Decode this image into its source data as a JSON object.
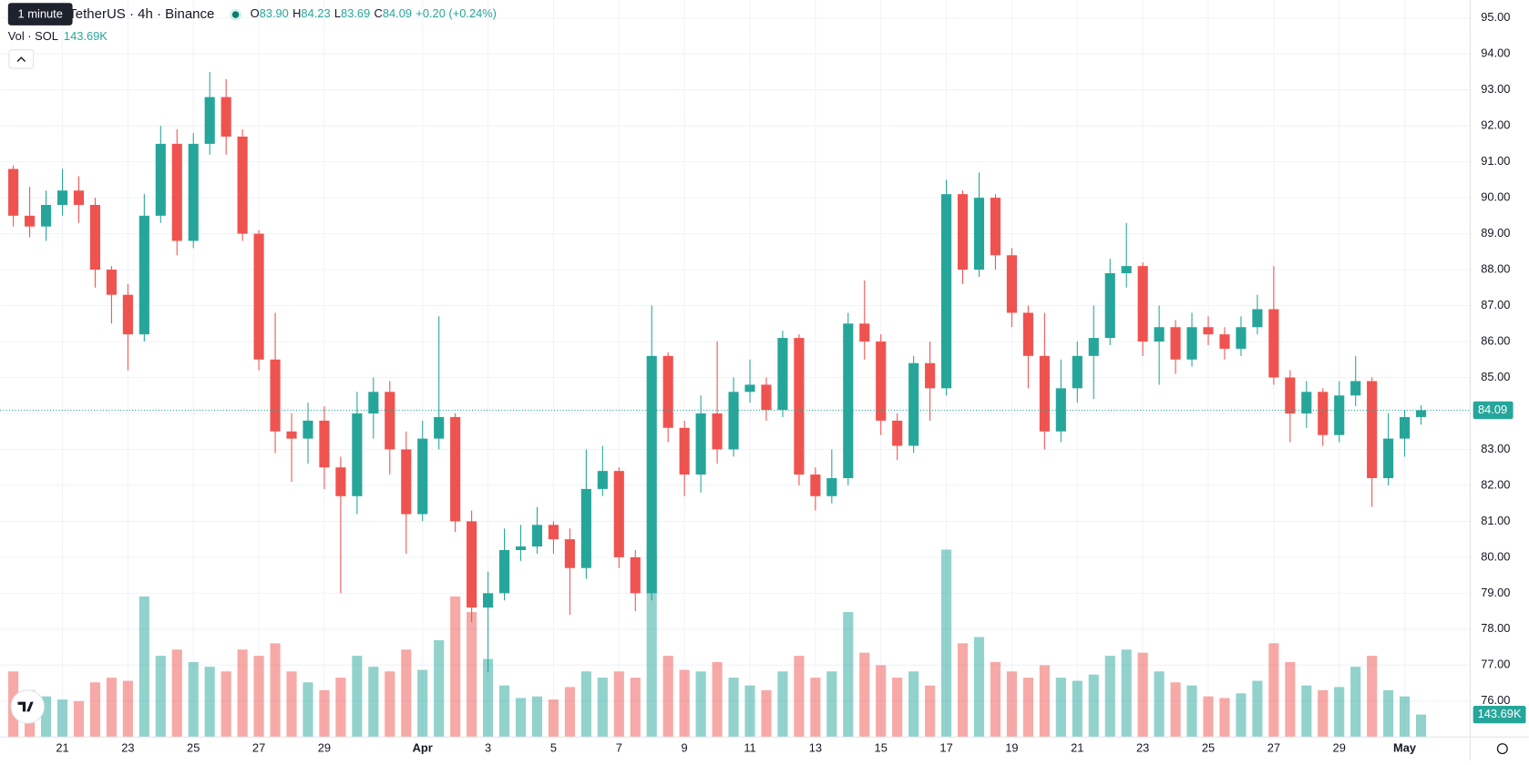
{
  "chart_data": {
    "type": "candlestick",
    "symbol": "TetherUS · 4h · Binance",
    "tooltip": "1 minute",
    "legend": [
      {
        "key": "O",
        "value": "83.90"
      },
      {
        "key": "H",
        "value": "84.23"
      },
      {
        "key": "L",
        "value": "83.69"
      },
      {
        "key": "C",
        "value": "84.09"
      }
    ],
    "change": "+0.20 (+0.24%)",
    "volume_title": "Vol · SOL",
    "volume_label": "143.69K",
    "last_price_label": "84.09",
    "up_color": "#26a69a",
    "down_color": "#ef5350",
    "grid": true,
    "xlim": [
      -1.9,
      43
    ],
    "ylim": [
      75,
      95.5
    ],
    "volume_lim": [
      0,
      1500
    ],
    "xticks": [
      {
        "value": 0,
        "label": "21"
      },
      {
        "value": 2,
        "label": "23"
      },
      {
        "value": 4,
        "label": "25"
      },
      {
        "value": 6,
        "label": "27"
      },
      {
        "value": 8,
        "label": "29"
      },
      {
        "value": 11,
        "label": "Apr"
      },
      {
        "value": 13,
        "label": "3"
      },
      {
        "value": 15,
        "label": "5"
      },
      {
        "value": 17,
        "label": "7"
      },
      {
        "value": 19,
        "label": "9"
      },
      {
        "value": 21,
        "label": "11"
      },
      {
        "value": 23,
        "label": "13"
      },
      {
        "value": 25,
        "label": "15"
      },
      {
        "value": 27,
        "label": "17"
      },
      {
        "value": 29,
        "label": "19"
      },
      {
        "value": 31,
        "label": "21"
      },
      {
        "value": 33,
        "label": "23"
      },
      {
        "value": 35,
        "label": "25"
      },
      {
        "value": 37,
        "label": "27"
      },
      {
        "value": 39,
        "label": "29"
      },
      {
        "value": 41,
        "label": "May"
      }
    ],
    "yticks": [
      {
        "value": 76,
        "label": "76.00"
      },
      {
        "value": 77,
        "label": "77.00"
      },
      {
        "value": 78,
        "label": "78.00"
      },
      {
        "value": 79,
        "label": "79.00"
      },
      {
        "value": 80,
        "label": "80.00"
      },
      {
        "value": 81,
        "label": "81.00"
      },
      {
        "value": 82,
        "label": "82.00"
      },
      {
        "value": 83,
        "label": "83.00"
      },
      {
        "value": 84,
        "label": "84.00"
      },
      {
        "value": 85,
        "label": "85.00"
      },
      {
        "value": 86,
        "label": "86.00"
      },
      {
        "value": 87,
        "label": "87.00"
      },
      {
        "value": 88,
        "label": "88.00"
      },
      {
        "value": 89,
        "label": "89.00"
      },
      {
        "value": 90,
        "label": "90.00"
      },
      {
        "value": 91,
        "label": "91.00"
      },
      {
        "value": 92,
        "label": "92.00"
      },
      {
        "value": 93,
        "label": "93.00"
      },
      {
        "value": 94,
        "label": "94.00"
      },
      {
        "value": 95,
        "label": "95.00"
      }
    ],
    "x": [
      -1.5,
      -1,
      -0.5,
      0,
      0.5,
      1,
      1.5,
      2,
      2.5,
      3,
      3.5,
      4,
      4.5,
      5,
      5.5,
      6,
      6.5,
      7,
      7.5,
      8,
      8.5,
      9,
      9.5,
      10,
      10.5,
      11,
      11.5,
      12,
      12.5,
      13,
      13.5,
      14,
      14.5,
      15,
      15.5,
      16,
      16.5,
      17,
      17.5,
      18,
      18.5,
      19,
      19.5,
      20,
      20.5,
      21,
      21.5,
      22,
      22.5,
      23,
      23.5,
      24,
      24.5,
      25,
      25.5,
      26,
      26.5,
      27,
      27.5,
      28,
      28.5,
      29,
      29.5,
      30,
      30.5,
      31,
      31.5,
      32,
      32.5,
      33,
      33.5,
      34,
      34.5,
      35,
      35.5,
      36,
      36.5,
      37,
      37.5,
      38,
      38.5,
      39,
      39.5,
      40,
      40.5,
      41,
      41.5
    ],
    "open": [
      90.8,
      89.5,
      89.2,
      89.8,
      90.2,
      89.8,
      88.0,
      87.3,
      86.2,
      89.5,
      91.5,
      88.8,
      91.5,
      92.8,
      91.7,
      89.0,
      85.5,
      83.5,
      83.3,
      83.8,
      82.5,
      81.7,
      84.0,
      84.6,
      83.0,
      81.2,
      83.3,
      83.9,
      81.0,
      78.6,
      79.0,
      80.2,
      80.3,
      80.9,
      80.5,
      79.7,
      81.9,
      82.4,
      80.0,
      79.0,
      85.6,
      83.6,
      82.3,
      84.0,
      83.0,
      84.6,
      84.8,
      84.1,
      86.1,
      82.3,
      81.7,
      82.2,
      86.5,
      86.0,
      83.8,
      83.1,
      85.4,
      84.7,
      90.1,
      88.0,
      90.0,
      88.4,
      86.8,
      85.6,
      83.5,
      84.7,
      85.6,
      86.1,
      87.9,
      88.1,
      86.0,
      86.4,
      85.5,
      86.4,
      86.2,
      85.8,
      86.4,
      86.9,
      85.0,
      84.0,
      84.6,
      83.4,
      84.5,
      84.9,
      82.2,
      83.3,
      83.9
    ],
    "high": [
      90.9,
      90.3,
      90.2,
      90.8,
      90.6,
      90.0,
      88.1,
      87.6,
      90.1,
      92.0,
      91.9,
      91.8,
      93.5,
      93.3,
      91.9,
      89.1,
      86.8,
      84.0,
      84.3,
      84.2,
      82.8,
      84.6,
      85.0,
      84.9,
      83.5,
      83.8,
      86.7,
      84.0,
      81.3,
      79.6,
      80.8,
      80.9,
      81.4,
      81.0,
      80.8,
      83.0,
      83.1,
      82.5,
      80.2,
      87.0,
      85.7,
      83.8,
      84.5,
      86.0,
      85.0,
      85.5,
      85.0,
      86.3,
      86.2,
      82.5,
      83.0,
      86.8,
      87.7,
      86.2,
      84.0,
      85.6,
      86.0,
      90.5,
      90.2,
      90.7,
      90.1,
      88.6,
      87.0,
      86.8,
      85.5,
      86.0,
      87.0,
      88.3,
      89.3,
      88.2,
      87.0,
      86.6,
      86.8,
      86.7,
      86.4,
      86.7,
      87.3,
      88.1,
      85.2,
      84.9,
      84.7,
      84.9,
      85.6,
      85.0,
      84.0,
      84.1,
      84.23
    ],
    "low": [
      89.2,
      88.9,
      88.8,
      89.5,
      89.3,
      87.5,
      86.5,
      85.2,
      86.0,
      89.3,
      88.4,
      88.6,
      91.2,
      91.2,
      88.8,
      85.2,
      82.9,
      82.1,
      82.6,
      81.9,
      79.0,
      81.2,
      83.3,
      82.3,
      80.1,
      81.0,
      83.0,
      80.7,
      78.2,
      76.8,
      78.8,
      79.9,
      80.1,
      80.1,
      78.4,
      79.4,
      81.7,
      79.7,
      78.5,
      78.8,
      83.2,
      81.7,
      81.8,
      82.6,
      82.8,
      84.3,
      83.8,
      83.9,
      82.0,
      81.3,
      81.5,
      82.0,
      85.5,
      83.4,
      82.7,
      82.9,
      83.8,
      84.5,
      87.6,
      87.8,
      88.0,
      86.4,
      84.7,
      83.0,
      83.2,
      84.3,
      84.4,
      85.9,
      87.5,
      85.6,
      84.8,
      85.1,
      85.3,
      85.9,
      85.5,
      85.6,
      86.2,
      84.8,
      83.2,
      83.6,
      83.1,
      83.2,
      84.2,
      81.4,
      82.0,
      82.8,
      83.69
    ],
    "close": [
      89.5,
      89.2,
      89.8,
      90.2,
      89.8,
      88.0,
      87.3,
      86.2,
      89.5,
      91.5,
      88.8,
      91.5,
      92.8,
      91.7,
      89.0,
      85.5,
      83.5,
      83.3,
      83.8,
      82.5,
      81.7,
      84.0,
      84.6,
      83.0,
      81.2,
      83.3,
      83.9,
      81.0,
      78.6,
      79.0,
      80.2,
      80.3,
      80.9,
      80.5,
      79.7,
      81.9,
      82.4,
      80.0,
      79.0,
      85.6,
      83.6,
      82.3,
      84.0,
      83.0,
      84.6,
      84.8,
      84.1,
      86.1,
      82.3,
      81.7,
      82.2,
      86.5,
      86.0,
      83.8,
      83.1,
      85.4,
      84.7,
      90.1,
      88.0,
      90.0,
      88.4,
      86.8,
      85.6,
      83.5,
      84.7,
      85.6,
      86.1,
      87.9,
      88.1,
      86.0,
      86.4,
      85.5,
      86.4,
      86.2,
      85.8,
      86.4,
      86.9,
      85.0,
      84.0,
      84.6,
      83.4,
      84.5,
      84.9,
      82.2,
      83.3,
      83.9,
      84.09
    ],
    "volume": [
      420,
      300,
      260,
      240,
      230,
      350,
      380,
      360,
      900,
      520,
      560,
      480,
      450,
      420,
      560,
      520,
      600,
      420,
      350,
      300,
      380,
      520,
      450,
      420,
      560,
      430,
      620,
      900,
      800,
      500,
      330,
      250,
      260,
      240,
      320,
      420,
      380,
      420,
      380,
      1200,
      520,
      430,
      420,
      480,
      380,
      330,
      300,
      420,
      520,
      380,
      420,
      800,
      540,
      460,
      380,
      420,
      330,
      1200,
      600,
      640,
      480,
      420,
      380,
      460,
      380,
      360,
      400,
      520,
      560,
      540,
      420,
      350,
      330,
      260,
      250,
      280,
      360,
      600,
      480,
      330,
      300,
      320,
      450,
      520,
      300,
      260,
      143.69
    ]
  }
}
